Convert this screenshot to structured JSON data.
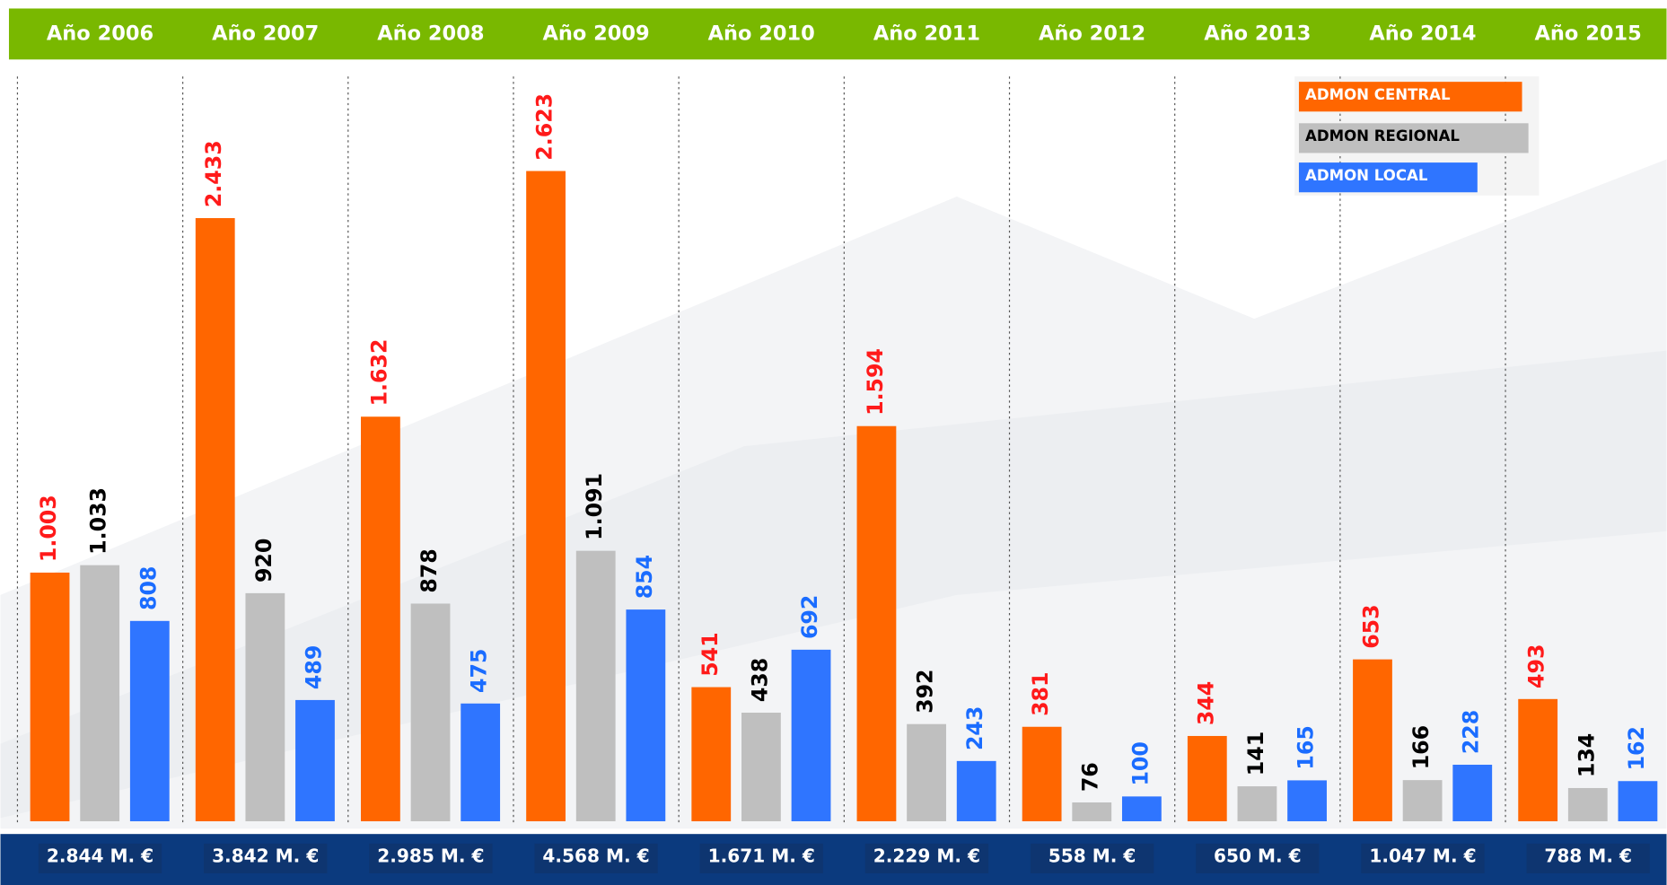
{
  "chart_data": {
    "type": "bar",
    "categories": [
      "Año 2006",
      "Año 2007",
      "Año 2008",
      "Año 2009",
      "Año 2010",
      "Año 2011",
      "Año 2012",
      "Año 2013",
      "Año 2014",
      "Año 2015"
    ],
    "series": [
      {
        "name": "ADMON CENTRAL",
        "color": "#ff6600",
        "label_color": "#ff1a1a",
        "values": [
          1003,
          2433,
          1632,
          2623,
          541,
          1594,
          381,
          344,
          653,
          493
        ],
        "value_labels": [
          "1.003",
          "2.433",
          "1.632",
          "2.623",
          "541",
          "1.594",
          "381",
          "344",
          "653",
          "493"
        ]
      },
      {
        "name": "ADMON REGIONAL",
        "color": "#bfbfbf",
        "label_color": "#000000",
        "values": [
          1033,
          920,
          878,
          1091,
          438,
          392,
          76,
          141,
          166,
          134
        ],
        "value_labels": [
          "1.033",
          "920",
          "878",
          "1.091",
          "438",
          "392",
          "76",
          "141",
          "166",
          "134"
        ]
      },
      {
        "name": "ADMON LOCAL",
        "color": "#2f75ff",
        "label_color": "#1a6cff",
        "values": [
          808,
          489,
          475,
          854,
          692,
          243,
          100,
          165,
          228,
          162
        ],
        "value_labels": [
          "808",
          "489",
          "475",
          "854",
          "692",
          "243",
          "100",
          "165",
          "228",
          "162"
        ]
      }
    ],
    "total_labels": [
      "2.844 M. €",
      "3.842 M. €",
      "2.985 M. €",
      "4.568 M. €",
      "1.671 M. €",
      "2.229 M. €",
      "558 M. €",
      "650 M. €",
      "1.047 M. €",
      "788 M. €"
    ],
    "ylim": [
      0,
      3000
    ]
  }
}
